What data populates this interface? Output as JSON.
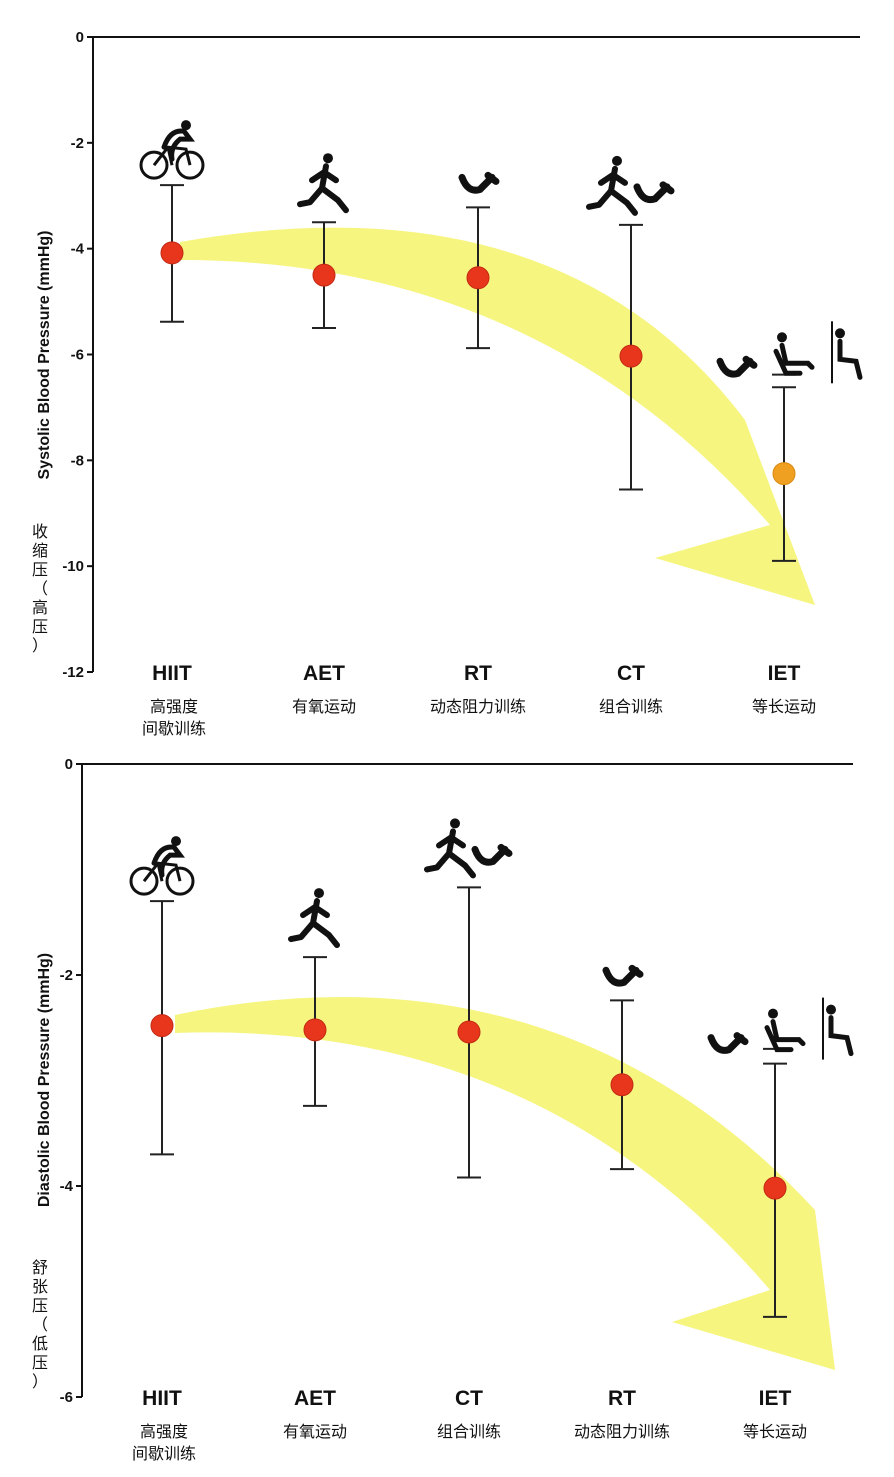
{
  "colors": {
    "arrow": "#f5f36a",
    "point": "#e8361d",
    "point_alt": "#f0a020",
    "axis": "#111111"
  },
  "chart_data": [
    {
      "type": "scatter",
      "ylabel": "Systolic Blood Pressure (mmHg)",
      "ylabel_cn": [
        "收",
        "缩",
        "压",
        "（",
        "高",
        "压",
        "）"
      ],
      "ylim": [
        -12,
        0
      ],
      "yticks": [
        0,
        -2,
        -4,
        -6,
        -8,
        -10,
        -12
      ],
      "categories": [
        "HIIT",
        "AET",
        "RT",
        "CT",
        "IET"
      ],
      "categories_cn": [
        [
          "高强度",
          "间歇训练"
        ],
        [
          "有氧运动"
        ],
        [
          "动态阻力训练"
        ],
        [
          "组合训练"
        ],
        [
          "等长运动"
        ]
      ],
      "values": [
        -4.08,
        -4.5,
        -4.55,
        -6.03,
        -8.25
      ],
      "error_low": [
        -5.38,
        -5.5,
        -5.88,
        -8.55,
        -9.9
      ],
      "error_high": [
        -2.8,
        -3.5,
        -3.22,
        -3.55,
        -6.62
      ],
      "error_high_extra": [
        null,
        null,
        null,
        null,
        -6.38
      ],
      "icons": [
        "cyclist-icon",
        "runner-icon",
        "arm-curl-icon",
        "runner-and-arm-curl-icon",
        "arm-chair-wall-sit-icon"
      ]
    },
    {
      "type": "scatter",
      "ylabel": "Diastolic Blood Pressure (mmHg)",
      "ylabel_cn": [
        "舒",
        "张",
        "压",
        "（",
        "低",
        "压",
        "）"
      ],
      "ylim": [
        -6,
        0
      ],
      "yticks": [
        0,
        -2,
        -4,
        -6
      ],
      "categories": [
        "HIIT",
        "AET",
        "CT",
        "RT",
        "IET"
      ],
      "categories_cn": [
        [
          "高强度",
          "间歇训练"
        ],
        [
          "有氧运动"
        ],
        [
          "组合训练"
        ],
        [
          "动态阻力训练"
        ],
        [
          "等长运动"
        ]
      ],
      "values": [
        -2.48,
        -2.52,
        -2.54,
        -3.04,
        -4.02
      ],
      "error_low": [
        -3.7,
        -3.24,
        -3.92,
        -3.84,
        -5.24
      ],
      "error_high": [
        -1.3,
        -1.83,
        -1.17,
        -2.24,
        -2.84
      ],
      "error_high_extra": [
        null,
        null,
        null,
        null,
        -2.7
      ],
      "icons": [
        "cyclist-icon",
        "runner-icon",
        "runner-and-arm-curl-icon",
        "arm-curl-icon",
        "arm-chair-wall-sit-icon"
      ]
    }
  ]
}
